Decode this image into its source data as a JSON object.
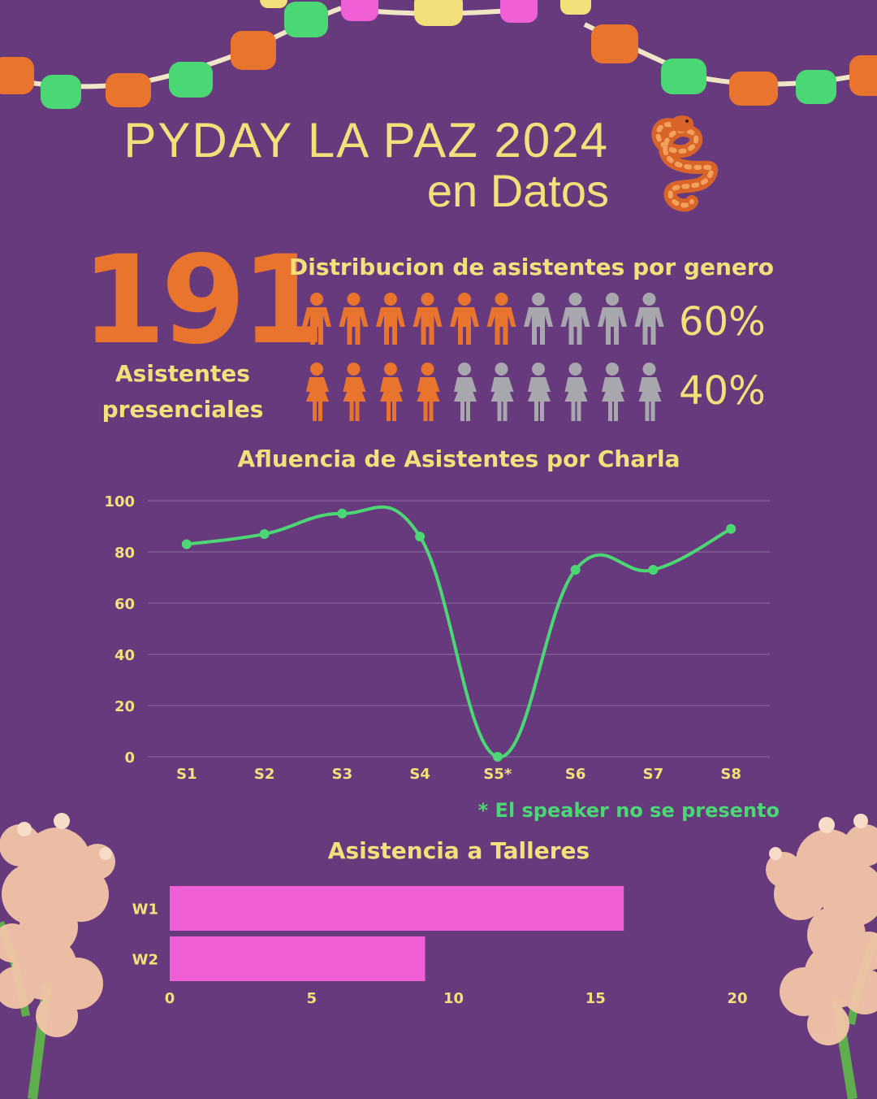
{
  "header": {
    "title_line1": "PYDAY LA PAZ 2024",
    "title_line2": "en Datos",
    "logo": "snake-icon"
  },
  "attendees": {
    "count": "191",
    "label_line1": "Asistentes",
    "label_line2": "presenciales"
  },
  "gender": {
    "title": "Distribucion de asistentes por genero",
    "rows": [
      {
        "icon": "male-person-icon",
        "percent_label": "60%",
        "filled": 6,
        "total": 10
      },
      {
        "icon": "female-person-icon",
        "percent_label": "40%",
        "filled": 4,
        "total": 10
      }
    ]
  },
  "footnote": "* El speaker no se presento",
  "chart_data": [
    {
      "type": "line",
      "title": "Afluencia de Asistentes por Charla",
      "categories": [
        "S1",
        "S2",
        "S3",
        "S4",
        "S5*",
        "S6",
        "S7",
        "S8"
      ],
      "values": [
        83,
        87,
        95,
        86,
        0,
        73,
        73,
        89
      ],
      "ylim": [
        0,
        100
      ],
      "yticks": [
        0,
        20,
        40,
        60,
        80,
        100
      ],
      "grid": true,
      "color": "#4cd775"
    },
    {
      "type": "bar",
      "orientation": "horizontal",
      "title": "Asistencia a Talleres",
      "categories": [
        "W1",
        "W2"
      ],
      "values": [
        16,
        9
      ],
      "xlim": [
        0,
        20
      ],
      "xticks": [
        0,
        5,
        10,
        15,
        20
      ],
      "color": "#f05fd6"
    }
  ],
  "colors": {
    "background": "#673a7e",
    "accent_yellow": "#f3e07a",
    "accent_orange": "#e8742e",
    "inactive_gray": "#a7a7ad",
    "line_green": "#4cd775",
    "bar_pink": "#f05fd6",
    "text_chart": "#f3e07a"
  }
}
